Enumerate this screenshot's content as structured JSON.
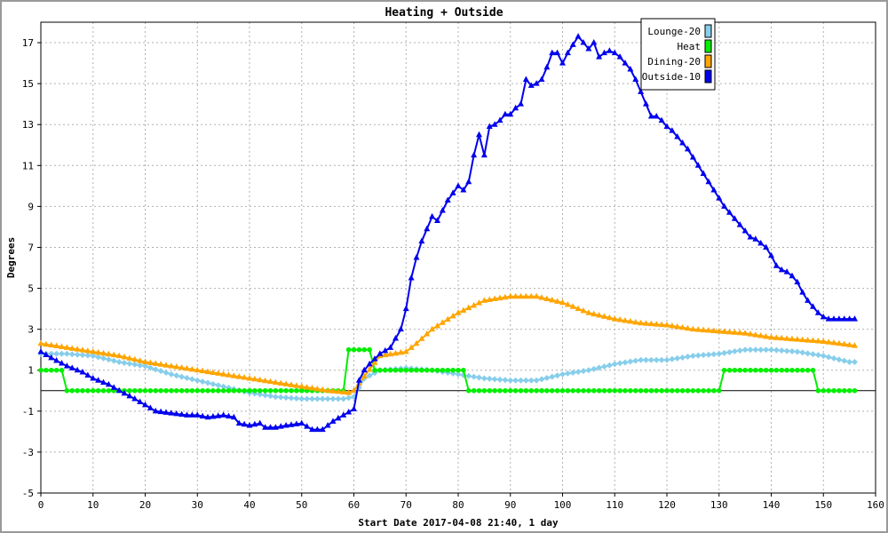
{
  "chart_data": {
    "type": "line",
    "title": "Heating + Outside",
    "xlabel": "Start Date 2017-04-08 21:40, 1 day",
    "ylabel": "Degrees",
    "xlim": [
      0,
      160
    ],
    "ylim": [
      -5,
      18
    ],
    "x_ticks": [
      "0",
      "10",
      "20",
      "30",
      "40",
      "50",
      "60",
      "70",
      "80",
      "90",
      "100",
      "110",
      "120",
      "130",
      "140",
      "150",
      "160"
    ],
    "y_ticks": [
      "17",
      "15",
      "13",
      "11",
      "9",
      "7",
      "5",
      "3",
      "1",
      "-1",
      "-3",
      "-5"
    ],
    "grid": true,
    "zero_line": true,
    "legend_position": "top-right",
    "series": [
      {
        "name": "Lounge-20",
        "color": "#87ceeb",
        "marker": "diamond",
        "points": [
          [
            0,
            1.8
          ],
          [
            5,
            1.8
          ],
          [
            10,
            1.7
          ],
          [
            15,
            1.4
          ],
          [
            20,
            1.2
          ],
          [
            25,
            0.8
          ],
          [
            30,
            0.5
          ],
          [
            35,
            0.2
          ],
          [
            40,
            -0.1
          ],
          [
            45,
            -0.3
          ],
          [
            50,
            -0.4
          ],
          [
            55,
            -0.4
          ],
          [
            58,
            -0.4
          ],
          [
            60,
            -0.3
          ],
          [
            62,
            0.6
          ],
          [
            65,
            1.0
          ],
          [
            70,
            1.1
          ],
          [
            75,
            1.0
          ],
          [
            80,
            0.8
          ],
          [
            85,
            0.6
          ],
          [
            90,
            0.5
          ],
          [
            95,
            0.5
          ],
          [
            100,
            0.8
          ],
          [
            105,
            1.0
          ],
          [
            110,
            1.3
          ],
          [
            115,
            1.5
          ],
          [
            120,
            1.5
          ],
          [
            125,
            1.7
          ],
          [
            130,
            1.8
          ],
          [
            135,
            2.0
          ],
          [
            140,
            2.0
          ],
          [
            145,
            1.9
          ],
          [
            150,
            1.7
          ],
          [
            155,
            1.4
          ],
          [
            156,
            1.4
          ]
        ]
      },
      {
        "name": "Heat",
        "color": "#00ee00",
        "marker": "circle",
        "points": [
          [
            0,
            1
          ],
          [
            4,
            1
          ],
          [
            5,
            0
          ],
          [
            58,
            0
          ],
          [
            59,
            2
          ],
          [
            63,
            2
          ],
          [
            64,
            1
          ],
          [
            81,
            1
          ],
          [
            82,
            0
          ],
          [
            130,
            0
          ],
          [
            131,
            1
          ],
          [
            148,
            1
          ],
          [
            149,
            0
          ],
          [
            156,
            0
          ]
        ]
      },
      {
        "name": "Dining-20",
        "color": "#ffa500",
        "marker": "triangle",
        "points": [
          [
            0,
            2.3
          ],
          [
            5,
            2.1
          ],
          [
            10,
            1.9
          ],
          [
            15,
            1.7
          ],
          [
            20,
            1.4
          ],
          [
            25,
            1.2
          ],
          [
            30,
            1.0
          ],
          [
            35,
            0.8
          ],
          [
            40,
            0.6
          ],
          [
            45,
            0.4
          ],
          [
            50,
            0.2
          ],
          [
            55,
            0.0
          ],
          [
            59,
            -0.1
          ],
          [
            60,
            0.0
          ],
          [
            62,
            0.7
          ],
          [
            65,
            1.7
          ],
          [
            70,
            1.9
          ],
          [
            72,
            2.3
          ],
          [
            75,
            3.0
          ],
          [
            80,
            3.8
          ],
          [
            85,
            4.4
          ],
          [
            90,
            4.6
          ],
          [
            95,
            4.6
          ],
          [
            100,
            4.3
          ],
          [
            105,
            3.8
          ],
          [
            110,
            3.5
          ],
          [
            115,
            3.3
          ],
          [
            120,
            3.2
          ],
          [
            125,
            3.0
          ],
          [
            130,
            2.9
          ],
          [
            135,
            2.8
          ],
          [
            140,
            2.6
          ],
          [
            145,
            2.5
          ],
          [
            150,
            2.4
          ],
          [
            156,
            2.2
          ]
        ]
      },
      {
        "name": "Outside-10",
        "color": "#0000ee",
        "marker": "triangle",
        "points": [
          [
            0,
            1.9
          ],
          [
            2,
            1.6
          ],
          [
            5,
            1.2
          ],
          [
            8,
            0.9
          ],
          [
            10,
            0.6
          ],
          [
            13,
            0.3
          ],
          [
            15,
            0.0
          ],
          [
            18,
            -0.4
          ],
          [
            20,
            -0.7
          ],
          [
            22,
            -1.0
          ],
          [
            25,
            -1.1
          ],
          [
            28,
            -1.2
          ],
          [
            30,
            -1.2
          ],
          [
            32,
            -1.3
          ],
          [
            35,
            -1.2
          ],
          [
            37,
            -1.3
          ],
          [
            38,
            -1.6
          ],
          [
            40,
            -1.7
          ],
          [
            42,
            -1.6
          ],
          [
            43,
            -1.8
          ],
          [
            45,
            -1.8
          ],
          [
            47,
            -1.7
          ],
          [
            50,
            -1.6
          ],
          [
            52,
            -1.9
          ],
          [
            54,
            -1.9
          ],
          [
            56,
            -1.5
          ],
          [
            58,
            -1.2
          ],
          [
            60,
            -0.9
          ],
          [
            61,
            0.5
          ],
          [
            62,
            1.0
          ],
          [
            63,
            1.3
          ],
          [
            65,
            1.8
          ],
          [
            67,
            2.1
          ],
          [
            69,
            3.0
          ],
          [
            70,
            4.0
          ],
          [
            71,
            5.5
          ],
          [
            72,
            6.5
          ],
          [
            73,
            7.3
          ],
          [
            75,
            8.5
          ],
          [
            76,
            8.3
          ],
          [
            77,
            8.8
          ],
          [
            78,
            9.3
          ],
          [
            80,
            10.0
          ],
          [
            81,
            9.8
          ],
          [
            82,
            10.2
          ],
          [
            83,
            11.5
          ],
          [
            84,
            12.5
          ],
          [
            85,
            11.5
          ],
          [
            86,
            12.9
          ],
          [
            87,
            13.0
          ],
          [
            88,
            13.2
          ],
          [
            89,
            13.5
          ],
          [
            90,
            13.5
          ],
          [
            91,
            13.8
          ],
          [
            92,
            14.0
          ],
          [
            93,
            15.2
          ],
          [
            94,
            14.9
          ],
          [
            95,
            15.0
          ],
          [
            96,
            15.2
          ],
          [
            97,
            15.8
          ],
          [
            98,
            16.5
          ],
          [
            99,
            16.5
          ],
          [
            100,
            16.0
          ],
          [
            101,
            16.5
          ],
          [
            102,
            16.9
          ],
          [
            103,
            17.3
          ],
          [
            104,
            17.0
          ],
          [
            105,
            16.7
          ],
          [
            106,
            17.0
          ],
          [
            107,
            16.3
          ],
          [
            108,
            16.5
          ],
          [
            109,
            16.6
          ],
          [
            110,
            16.5
          ],
          [
            111,
            16.3
          ],
          [
            112,
            16.0
          ],
          [
            113,
            15.7
          ],
          [
            114,
            15.2
          ],
          [
            115,
            14.6
          ],
          [
            116,
            14.0
          ],
          [
            117,
            13.4
          ],
          [
            118,
            13.4
          ],
          [
            119,
            13.2
          ],
          [
            120,
            12.9
          ],
          [
            121,
            12.7
          ],
          [
            122,
            12.4
          ],
          [
            123,
            12.1
          ],
          [
            124,
            11.8
          ],
          [
            125,
            11.4
          ],
          [
            126,
            11.0
          ],
          [
            127,
            10.6
          ],
          [
            128,
            10.2
          ],
          [
            129,
            9.8
          ],
          [
            130,
            9.4
          ],
          [
            131,
            9.0
          ],
          [
            132,
            8.7
          ],
          [
            133,
            8.4
          ],
          [
            134,
            8.1
          ],
          [
            135,
            7.8
          ],
          [
            136,
            7.5
          ],
          [
            137,
            7.4
          ],
          [
            138,
            7.2
          ],
          [
            139,
            7.0
          ],
          [
            140,
            6.6
          ],
          [
            141,
            6.1
          ],
          [
            142,
            5.9
          ],
          [
            143,
            5.8
          ],
          [
            144,
            5.6
          ],
          [
            145,
            5.3
          ],
          [
            146,
            4.8
          ],
          [
            147,
            4.4
          ],
          [
            148,
            4.1
          ],
          [
            149,
            3.8
          ],
          [
            150,
            3.6
          ],
          [
            151,
            3.5
          ],
          [
            152,
            3.5
          ],
          [
            153,
            3.5
          ],
          [
            156,
            3.5
          ]
        ]
      }
    ]
  }
}
